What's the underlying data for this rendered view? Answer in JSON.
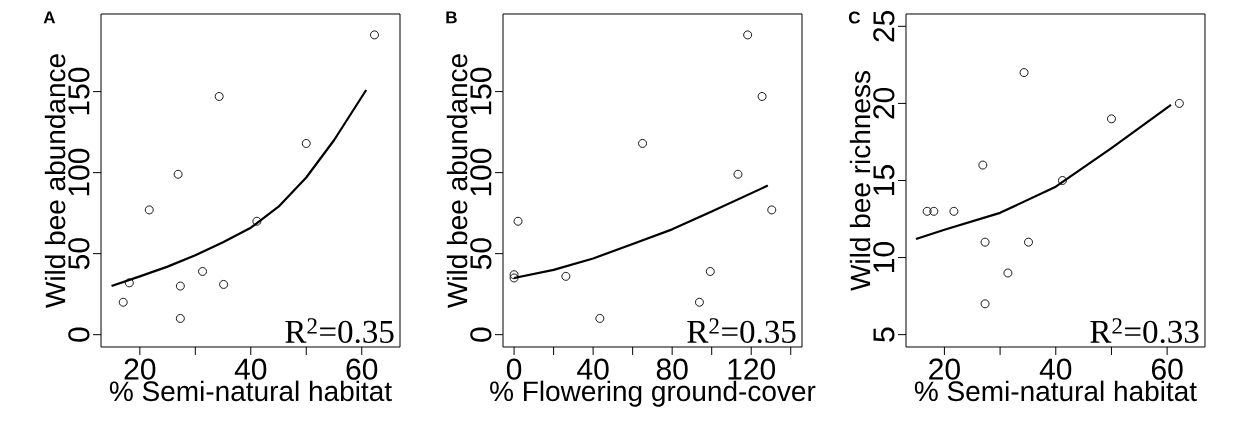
{
  "chart_data": [
    {
      "type": "scatter",
      "title": "A",
      "xlabel": "% Semi-natural habitat",
      "ylabel": "Wild bee abundance",
      "xlim": [
        13,
        66.9
      ],
      "ylim": [
        -7.6,
        197.9
      ],
      "xticks": [
        20,
        {
          "value": 30,
          "label": null
        },
        40,
        {
          "value": 50,
          "label": null
        },
        60
      ],
      "yticks": [
        0,
        50,
        100,
        150
      ],
      "annotations": [
        "R$^{2}$=0.35"
      ],
      "series": [
        {
          "marker": "circle",
          "color": "#000000",
          "x": [
            62.3,
            34.3,
            26.9,
            21.7,
            50.0,
            41.1,
            31.3,
            18.1,
            17.0,
            27.3,
            35.1,
            27.3
          ],
          "values": [
            185,
            147,
            99,
            77,
            118,
            70,
            39,
            32,
            20,
            30,
            31,
            10
          ]
        },
        {
          "type": "line",
          "marker": "none",
          "color": "#000000",
          "x": [
            14.9,
            20,
            25,
            30,
            35,
            40,
            45,
            50,
            55,
            60.8
          ],
          "values": [
            30,
            36,
            42,
            49,
            57,
            66,
            79,
            97,
            120,
            151
          ]
        }
      ]
    },
    {
      "type": "scatter",
      "title": "B",
      "xlabel": "% Flowering ground-cover",
      "ylabel": "Wild bee abundance",
      "xlim": [
        -5.6,
        145.7
      ],
      "ylim": [
        -7.6,
        197.9
      ],
      "xticks": [
        0,
        {
          "value": 20,
          "label": null
        },
        40,
        {
          "value": 60,
          "label": null
        },
        80,
        {
          "value": 100,
          "label": null
        },
        120,
        {
          "value": 140,
          "label": null
        }
      ],
      "yticks": [
        0,
        50,
        100,
        150
      ],
      "annotations": [
        "R$^{2}$=0.35"
      ],
      "series": [
        {
          "marker": "circle",
          "color": "#000000",
          "x": [
            118.2,
            125.5,
            65.0,
            113.3,
            130.4,
            2.0,
            99.3,
            0,
            0,
            26.2,
            93.8,
            43.4
          ],
          "values": [
            185,
            147,
            118,
            99,
            77,
            70,
            39,
            37,
            35,
            36,
            20,
            10
          ]
        },
        {
          "type": "line",
          "marker": "none",
          "color": "#000000",
          "x": [
            0,
            20,
            40,
            60,
            80,
            100,
            128.4
          ],
          "values": [
            35,
            40,
            47,
            56,
            65,
            76,
            92
          ]
        }
      ]
    },
    {
      "type": "scatter",
      "title": "C",
      "xlabel": "% Semi-natural habitat",
      "ylabel": "Wild bee richness",
      "xlim": [
        13.1,
        66.8
      ],
      "ylim": [
        4.2,
        25.8
      ],
      "xticks": [
        20,
        {
          "value": 30,
          "label": null
        },
        40,
        {
          "value": 50,
          "label": null
        },
        60
      ],
      "yticks": [
        5,
        10,
        15,
        20,
        25
      ],
      "annotations": [
        "R$^{2}$=0.33"
      ],
      "series": [
        {
          "marker": "circle",
          "color": "#000000",
          "x": [
            34.3,
            62.2,
            50.0,
            26.9,
            41.2,
            16.9,
            18.1,
            21.7,
            27.3,
            35.1,
            31.4,
            27.3
          ],
          "values": [
            22,
            20,
            19,
            16,
            15,
            13,
            13,
            13,
            11,
            11,
            9,
            7
          ]
        },
        {
          "type": "line",
          "marker": "none",
          "color": "#000000",
          "x": [
            14.9,
            20,
            30,
            40,
            50,
            60.7
          ],
          "values": [
            11.2,
            11.8,
            12.9,
            14.6,
            17.1,
            19.9
          ]
        }
      ]
    }
  ]
}
